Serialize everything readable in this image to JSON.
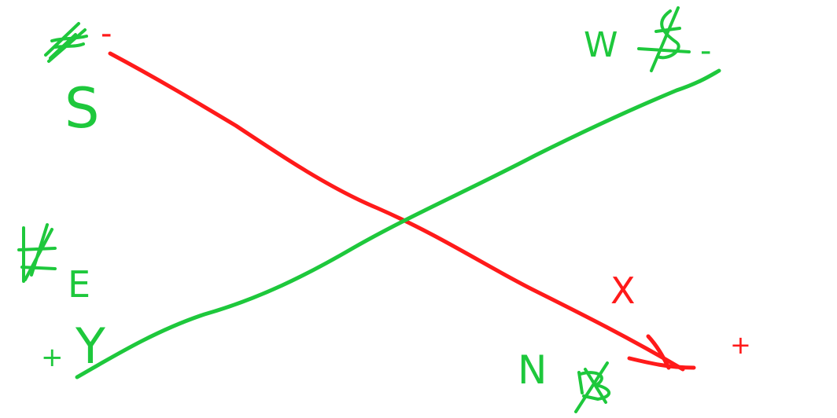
{
  "colors": {
    "background": "#ffffff",
    "green": "#1ec83c",
    "red": "#ff1a1a"
  },
  "labels": {
    "s": "S",
    "w": "W",
    "e": "E",
    "y": "Y",
    "n": "N",
    "x": "X",
    "red_minus": "-",
    "green_minus": "-",
    "red_plus": "+",
    "green_plus": "+"
  },
  "axes": {
    "red_axis": {
      "name": "X",
      "negative": "-",
      "positive": "+"
    },
    "green_axis": {
      "name": "Y",
      "negative": "-",
      "positive": "+"
    }
  }
}
